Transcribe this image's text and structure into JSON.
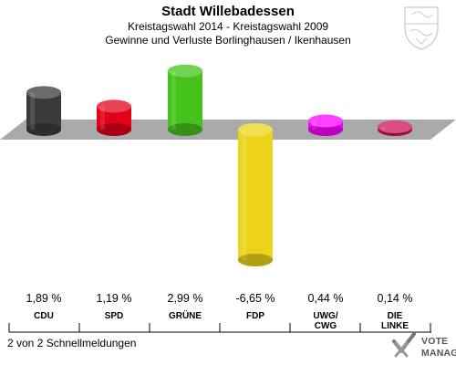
{
  "header": {
    "title": "Stadt Willebadessen",
    "subtitle": "Kreistagswahl 2014 - Kreistagswahl 2009",
    "subtitle2": "Gewinne und Verluste Borlinghausen / Ikenhausen"
  },
  "footer": {
    "note": "2 von 2 Schnellmeldungen"
  },
  "brand": {
    "line1": "VOTE",
    "line2": "MANAGER",
    "icon": "checkmark-x-icon"
  },
  "crest": {
    "icon": "coat-of-arms-icon"
  },
  "chart_data": {
    "type": "bar",
    "title": "Stadt Willebadessen",
    "categories": [
      "CDU",
      "SPD",
      "GRÜNE",
      "FDP",
      "UWG/\nCWG",
      "DIE\nLINKE"
    ],
    "values": [
      1.89,
      1.19,
      2.99,
      -6.65,
      0.44,
      0.14
    ],
    "value_labels": [
      "1,89 %",
      "1,19 %",
      "2,99 %",
      "-6,65 %",
      "0,44 %",
      "0,14 %"
    ],
    "colors": [
      "#3a3a3a",
      "#e2001a",
      "#46c31a",
      "#ecd41a",
      "#ff00ff",
      "#cc1155"
    ],
    "ylim": [
      -6.65,
      2.99
    ],
    "grid": false,
    "legend": "none"
  }
}
